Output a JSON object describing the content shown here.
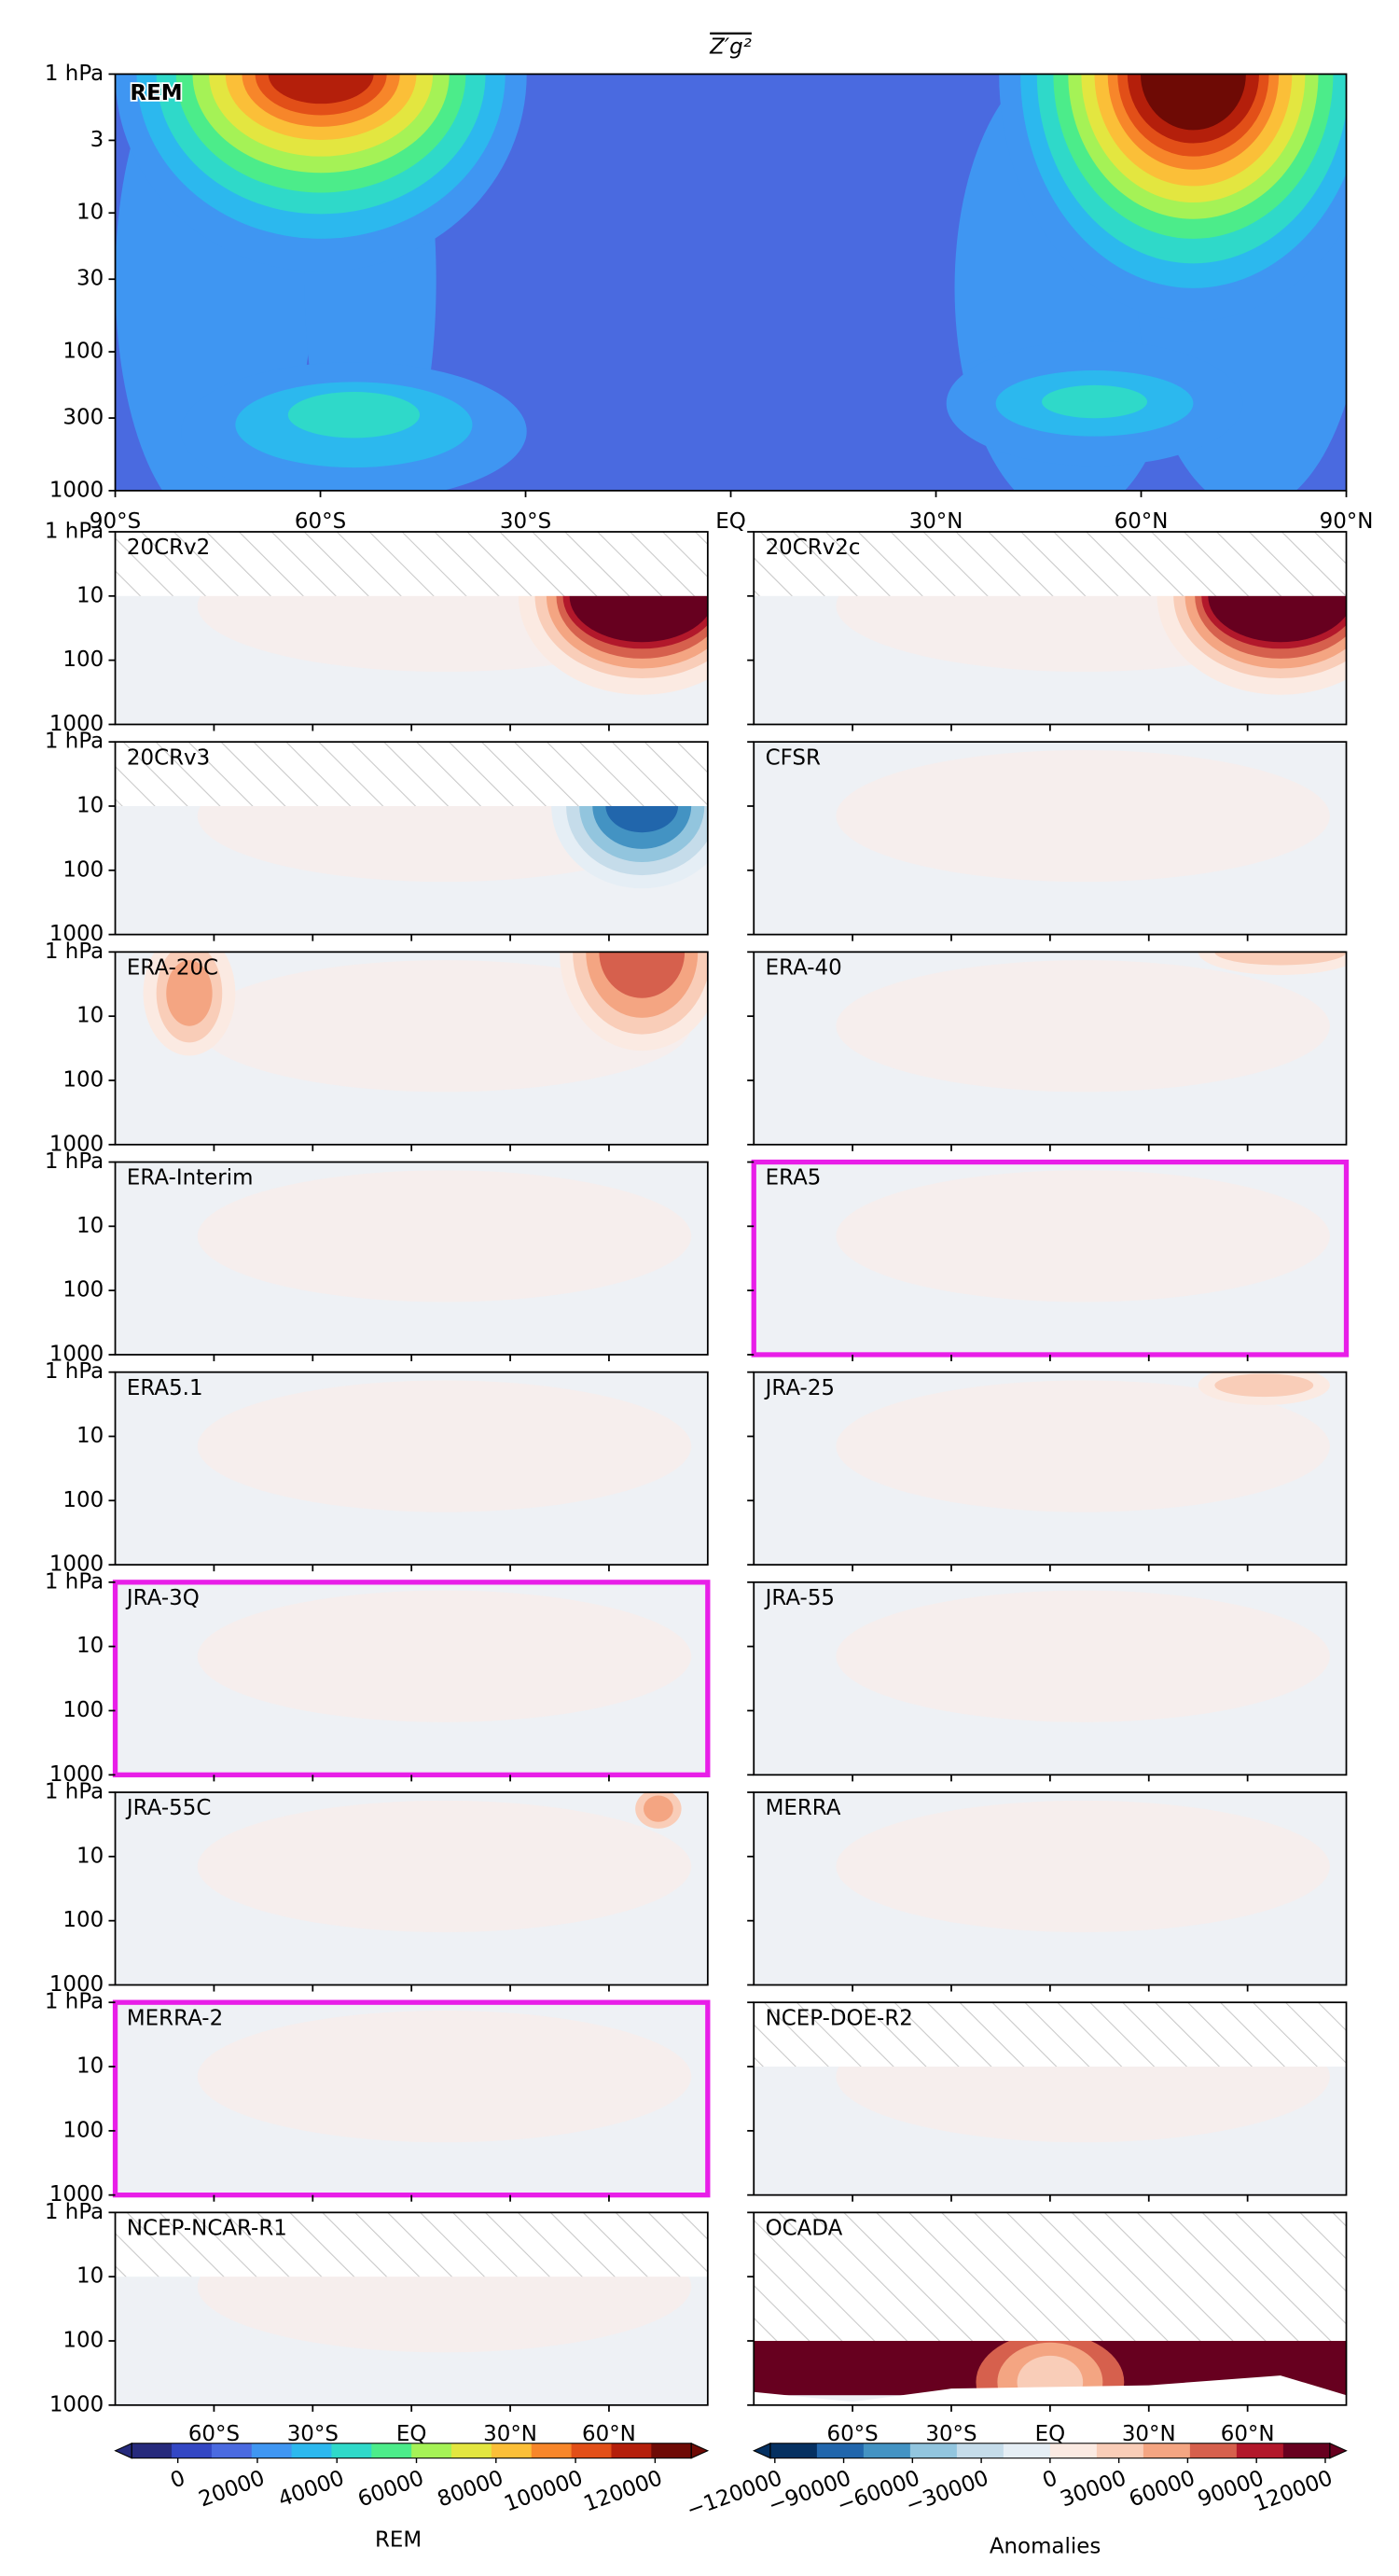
{
  "chart_data": [
    {
      "type": "contour",
      "title": "Z′g²",
      "label": "REM",
      "label_color": "#e81ee8",
      "log_y": true,
      "xlim": [
        -90,
        90
      ],
      "xticks": [
        {
          "value": -90,
          "label": "90°S"
        },
        {
          "value": -60,
          "label": "60°S"
        },
        {
          "value": -30,
          "label": "30°S"
        },
        {
          "value": 0,
          "label": "EQ"
        },
        {
          "value": 30,
          "label": "30°N"
        },
        {
          "value": 60,
          "label": "60°N"
        },
        {
          "value": 90,
          "label": "90°N"
        }
      ],
      "ylim": [
        1000,
        1
      ],
      "yticks": [
        {
          "value": 1,
          "label": "1 hPa"
        },
        3,
        10,
        30,
        100,
        300,
        1000
      ]
    },
    {
      "type": "contour-grid",
      "log_y": true,
      "highlight_color": "#e81ee8",
      "xlim": [
        -90,
        90
      ],
      "xticks": [
        {
          "value": -60,
          "label": "60°S"
        },
        {
          "value": -30,
          "label": "30°S"
        },
        {
          "value": 0,
          "label": "EQ"
        },
        {
          "value": 30,
          "label": "30°N"
        },
        {
          "value": 60,
          "label": "60°N"
        }
      ],
      "ylim": [
        1000,
        1
      ],
      "yticks": [
        {
          "value": 1,
          "label": "1 hPa"
        },
        10,
        100,
        1000
      ],
      "panels": [
        {
          "name": "20CRv2",
          "hatch_above": 10
        },
        {
          "name": "20CRv2c",
          "hatch_above": 10
        },
        {
          "name": "20CRv3",
          "hatch_above": 10
        },
        {
          "name": "CFSR"
        },
        {
          "name": "ERA-20C"
        },
        {
          "name": "ERA-40"
        },
        {
          "name": "ERA-Interim"
        },
        {
          "name": "ERA5",
          "highlight": true
        },
        {
          "name": "ERA5.1"
        },
        {
          "name": "JRA-25"
        },
        {
          "name": "JRA-3Q",
          "highlight": true
        },
        {
          "name": "JRA-55"
        },
        {
          "name": "JRA-55C"
        },
        {
          "name": "MERRA"
        },
        {
          "name": "MERRA-2",
          "highlight": true
        },
        {
          "name": "NCEP-DOE-R2",
          "hatch_above": 10
        },
        {
          "name": "NCEP-NCAR-R1",
          "hatch_above": 10
        },
        {
          "name": "OCADA",
          "hatch_above": 100
        }
      ]
    },
    {
      "type": "colorbar",
      "label": "REM",
      "xlim": [
        -11600,
        129100
      ],
      "xticks": [
        0,
        20000,
        40000,
        60000,
        80000,
        100000,
        120000
      ],
      "colors": [
        "#262a7c",
        "#3347c4",
        "#4a6ae0",
        "#3f96f2",
        "#2cb8ee",
        "#2fd9c9",
        "#4cec8a",
        "#a5f256",
        "#e3e640",
        "#fbbf38",
        "#f7862a",
        "#e24f18",
        "#b41f0b",
        "#6e0a05"
      ]
    },
    {
      "type": "colorbar",
      "label": "Anomalies",
      "xlim": [
        -122000,
        122000
      ],
      "xticks": [
        {
          "value": -120000,
          "label": "−120000"
        },
        {
          "value": -90000,
          "label": "−90000"
        },
        {
          "value": -60000,
          "label": "−60000"
        },
        {
          "value": -30000,
          "label": "−30000"
        },
        0,
        30000,
        60000,
        90000,
        120000
      ],
      "colors": [
        "#053061",
        "#2166ac",
        "#4393c3",
        "#92c5de",
        "#c5dcea",
        "#e5eef5",
        "#fbeae2",
        "#f9cdb8",
        "#f4a582",
        "#d6604d",
        "#b2182b",
        "#67001f"
      ]
    }
  ]
}
